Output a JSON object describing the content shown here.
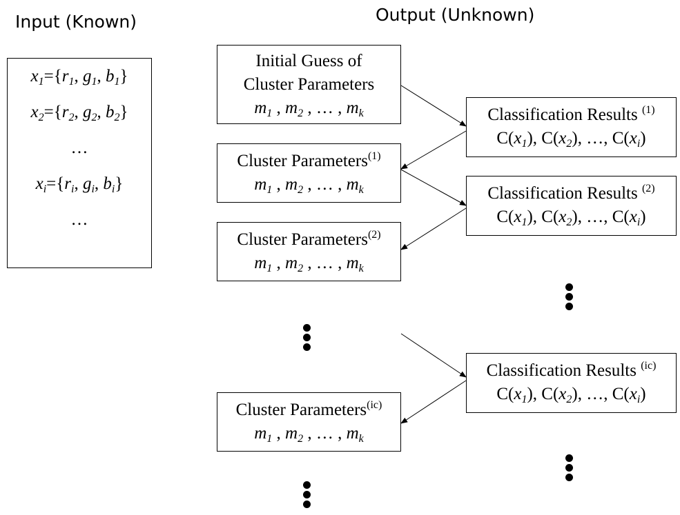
{
  "headings": {
    "input": "Input (Known)",
    "output": "Output (Unknown)"
  },
  "input_box": {
    "x1": {
      "name": "x",
      "sub": "1",
      "eq": "={",
      "r": "r",
      "r_sub": "1",
      "g": "g",
      "g_sub": "1",
      "b": "b",
      "b_sub": "1",
      "close": "}"
    },
    "x2": {
      "name": "x",
      "sub": "2",
      "eq": "={",
      "r": "r",
      "r_sub": "2",
      "g": "g",
      "g_sub": "2",
      "b": "b",
      "b_sub": "2",
      "close": "}"
    },
    "ellipsis_1": "…",
    "xi": {
      "name": "x",
      "sub": "i",
      "eq": "={",
      "r": "r",
      "r_sub": "i",
      "g": "g",
      "g_sub": "i",
      "b": "b",
      "b_sub": "i",
      "close": "}"
    },
    "ellipsis_2": "…"
  },
  "initial_guess": {
    "line1": "Initial Guess of",
    "line2": "Cluster Parameters"
  },
  "cluster_params": [
    {
      "label": "Cluster Parameters",
      "sup": "(1)"
    },
    {
      "label": "Cluster Parameters",
      "sup": "(2)"
    },
    {
      "label": "Cluster Parameters",
      "sup": "(ic)"
    }
  ],
  "classification": [
    {
      "label": "Classification Results ",
      "sup": "(1)"
    },
    {
      "label": "Classification Results ",
      "sup": "(2)"
    },
    {
      "label": "Classification Results ",
      "sup": "(ic)"
    }
  ],
  "means_formula": {
    "m": "m",
    "s1": "1",
    "s2": "2",
    "sk": "k",
    "sep": " , ",
    "dots": "…"
  },
  "class_formula": {
    "c": "C(",
    "x": "x",
    "s1": "1",
    "s2": "2",
    "si": "i",
    "close": ")",
    "sep": ", ",
    "dots": "…"
  }
}
